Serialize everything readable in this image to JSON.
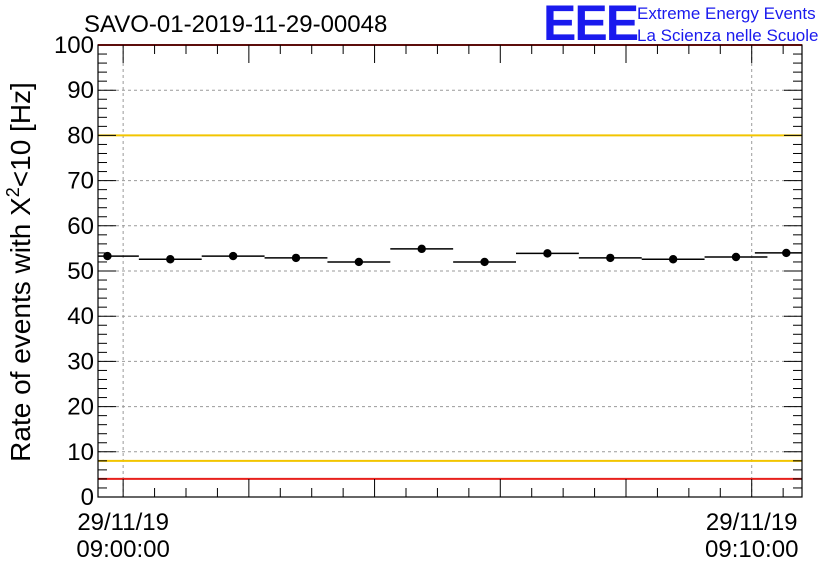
{
  "chart_data": {
    "type": "scatter",
    "title": "SAVO-01-2019-11-29-00048",
    "ylabel_prefix": "Rate of events with X",
    "ylabel_sup": "2",
    "ylabel_suffix": "<10 [Hz]",
    "xlabel": "",
    "ylim": [
      0,
      100
    ],
    "y_ticks": [
      "0",
      "10",
      "20",
      "30",
      "40",
      "50",
      "60",
      "70",
      "80",
      "90",
      "100"
    ],
    "x_tick_labels": [
      {
        "date": "29/11/19",
        "time": "09:00:00"
      },
      {
        "date": "29/11/19",
        "time": "09:10:00"
      }
    ],
    "reference_lines": [
      {
        "value": 100,
        "color": "#e8211c"
      },
      {
        "value": 80,
        "color": "#f2c500"
      },
      {
        "value": 8,
        "color": "#f2c500"
      },
      {
        "value": 4,
        "color": "#e8211c"
      }
    ],
    "bin_width_min": 1,
    "x_start_min": -0.4,
    "x_end_min": 10.8,
    "series": [
      {
        "name": "rate",
        "color": "#000000",
        "x_min": [
          -0.25,
          0.75,
          1.75,
          2.75,
          3.75,
          4.75,
          5.75,
          6.75,
          7.75,
          8.75,
          9.75,
          10.55
        ],
        "values": [
          53.3,
          52.6,
          53.3,
          52.9,
          52.0,
          54.9,
          52.0,
          53.9,
          52.9,
          52.6,
          53.1,
          54.0
        ]
      }
    ]
  },
  "logo": {
    "mark": "EEE",
    "line1": "Extreme Energy Events",
    "line2": "La Scienza nelle Scuole",
    "color": "#1a1aee"
  }
}
